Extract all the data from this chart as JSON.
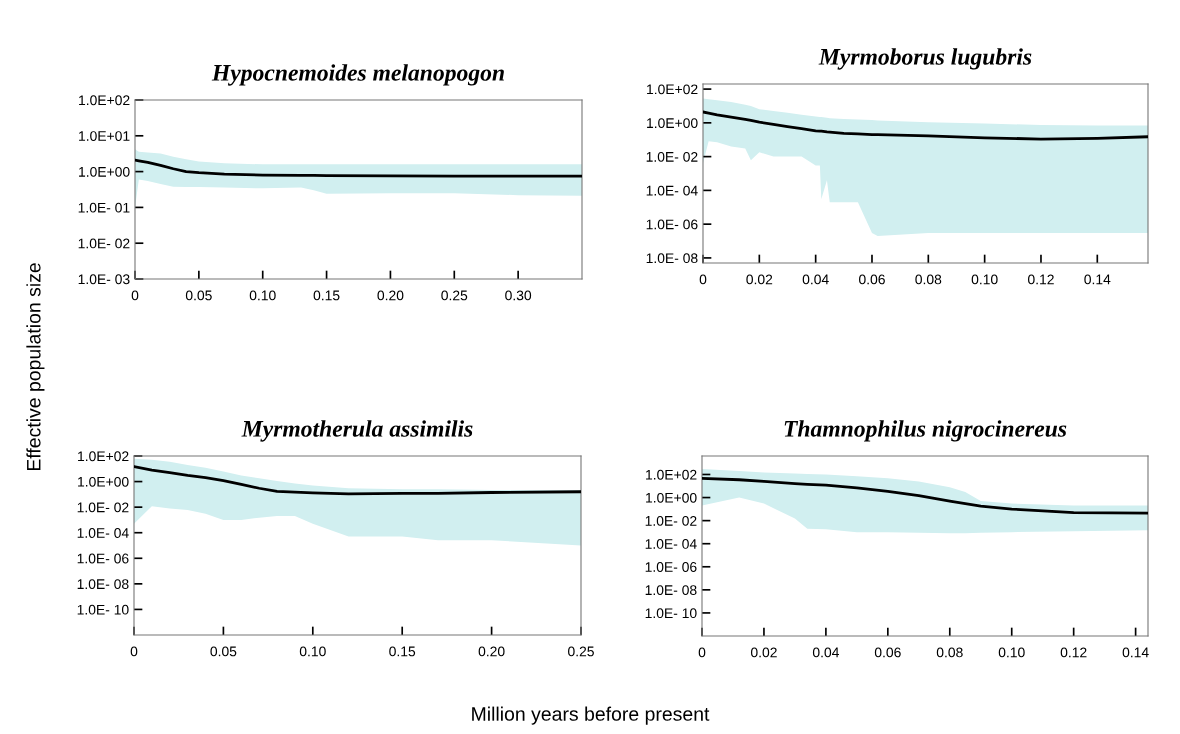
{
  "chart_data": [
    {
      "type": "line",
      "title": "Hypocnemoides melanopogon",
      "xlabel": "Million years before present",
      "ylabel": "Effective population size",
      "log": "y",
      "grid": false,
      "xlim": [
        0,
        0.35
      ],
      "ylim": [
        0.001,
        100
      ],
      "xticks": [
        {
          "value": 0,
          "label": "0"
        },
        {
          "value": 0.05,
          "label": "0.05"
        },
        {
          "value": 0.1,
          "label": "0.10"
        },
        {
          "value": 0.15,
          "label": "0.15"
        },
        {
          "value": 0.2,
          "label": "0.20"
        },
        {
          "value": 0.25,
          "label": "0.25"
        },
        {
          "value": 0.3,
          "label": "0.30"
        }
      ],
      "yticks": [
        {
          "value": 100,
          "label": "1.0E+02"
        },
        {
          "value": 10,
          "label": "1.0E+01"
        },
        {
          "value": 1,
          "label": "1.0E+00"
        },
        {
          "value": 0.1,
          "label": "1.0E- 01"
        },
        {
          "value": 0.01,
          "label": "1.0E- 02"
        },
        {
          "value": 0.001,
          "label": "1.0E- 03"
        }
      ],
      "series": [
        {
          "color": "#000000",
          "x": [
            0,
            0.003,
            0.01,
            0.02,
            0.03,
            0.04,
            0.05,
            0.07,
            0.1,
            0.13,
            0.14,
            0.15,
            0.2,
            0.25,
            0.3,
            0.35
          ],
          "values": [
            2.1,
            2.0,
            1.8,
            1.5,
            1.2,
            1.0,
            0.93,
            0.85,
            0.8,
            0.78,
            0.78,
            0.77,
            0.76,
            0.75,
            0.75,
            0.75
          ],
          "upper": [
            4.2,
            3.6,
            3.4,
            3.2,
            2.6,
            2.2,
            1.9,
            1.7,
            1.6,
            1.6,
            1.6,
            1.6,
            1.6,
            1.6,
            1.6,
            1.6
          ],
          "lower": [
            0.1,
            0.6,
            0.55,
            0.45,
            0.38,
            0.37,
            0.37,
            0.36,
            0.34,
            0.36,
            0.3,
            0.24,
            0.25,
            0.25,
            0.22,
            0.21
          ]
        }
      ]
    },
    {
      "type": "line",
      "title": "Myrmoborus lugubris",
      "log": "y",
      "grid": false,
      "xlim": [
        0,
        0.158
      ],
      "ylim": [
        5e-09,
        200
      ],
      "xticks": [
        {
          "value": 0,
          "label": "0"
        },
        {
          "value": 0.02,
          "label": "0.02"
        },
        {
          "value": 0.04,
          "label": "0.04"
        },
        {
          "value": 0.06,
          "label": "0.06"
        },
        {
          "value": 0.08,
          "label": "0.08"
        },
        {
          "value": 0.1,
          "label": "0.10"
        },
        {
          "value": 0.12,
          "label": "0.12"
        },
        {
          "value": 0.14,
          "label": "0.14"
        }
      ],
      "yticks": [
        {
          "value": 100,
          "label": "1.0E+02"
        },
        {
          "value": 1,
          "label": "1.0E+00"
        },
        {
          "value": 0.01,
          "label": "1.0E- 02"
        },
        {
          "value": 0.0001,
          "label": "1.0E- 04"
        },
        {
          "value": 1e-06,
          "label": "1.0E- 06"
        },
        {
          "value": 1e-08,
          "label": "1.0E- 08"
        }
      ],
      "series": [
        {
          "color": "#000000",
          "x": [
            0,
            0.002,
            0.005,
            0.01,
            0.015,
            0.017,
            0.02,
            0.025,
            0.03,
            0.035,
            0.04,
            0.0415,
            0.042,
            0.044,
            0.045,
            0.05,
            0.055,
            0.06,
            0.062,
            0.08,
            0.1,
            0.12,
            0.14,
            0.158
          ],
          "values": [
            4.4,
            3.8,
            3.0,
            2.2,
            1.6,
            1.4,
            1.1,
            0.8,
            0.6,
            0.45,
            0.34,
            0.32,
            0.32,
            0.29,
            0.28,
            0.24,
            0.22,
            0.2,
            0.2,
            0.17,
            0.13,
            0.11,
            0.12,
            0.15
          ],
          "upper": [
            28,
            25,
            22,
            17,
            12,
            10,
            6.4,
            5,
            4,
            3,
            2.4,
            2.2,
            2.2,
            2,
            1.9,
            1.7,
            1.6,
            1.5,
            1.4,
            1.1,
            0.9,
            0.75,
            0.7,
            0.7
          ],
          "lower": [
            0.004,
            0.08,
            0.07,
            0.04,
            0.03,
            0.006,
            0.018,
            0.01,
            0.01,
            0.01,
            0.003,
            0.003,
            3e-05,
            0.0004,
            2e-05,
            2e-05,
            2e-05,
            3e-07,
            2e-07,
            3e-07,
            3e-07,
            3e-07,
            3e-07,
            3e-07
          ]
        }
      ]
    },
    {
      "type": "line",
      "title": "Myrmotherula assimilis",
      "log": "y",
      "grid": false,
      "xlim": [
        0,
        0.25
      ],
      "ylim": [
        1e-12,
        100
      ],
      "xticks": [
        {
          "value": 0,
          "label": "0"
        },
        {
          "value": 0.05,
          "label": "0.05"
        },
        {
          "value": 0.1,
          "label": "0.10"
        },
        {
          "value": 0.15,
          "label": "0.15"
        },
        {
          "value": 0.2,
          "label": "0.20"
        },
        {
          "value": 0.25,
          "label": "0.25"
        }
      ],
      "yticks": [
        {
          "value": 100,
          "label": "1.0E+02"
        },
        {
          "value": 1,
          "label": "1.0E+00"
        },
        {
          "value": 0.01,
          "label": "1.0E- 02"
        },
        {
          "value": 0.0001,
          "label": "1.0E- 04"
        },
        {
          "value": 1e-06,
          "label": "1.0E- 06"
        },
        {
          "value": 1e-08,
          "label": "1.0E- 08"
        },
        {
          "value": 1e-10,
          "label": "1.0E- 10"
        }
      ],
      "series": [
        {
          "color": "#000000",
          "x": [
            0,
            0.01,
            0.02,
            0.03,
            0.04,
            0.05,
            0.06,
            0.07,
            0.08,
            0.09,
            0.1,
            0.12,
            0.15,
            0.17,
            0.2,
            0.25
          ],
          "values": [
            15,
            8,
            5,
            3,
            2,
            1.2,
            0.6,
            0.3,
            0.17,
            0.15,
            0.13,
            0.11,
            0.12,
            0.12,
            0.14,
            0.16
          ],
          "upper": [
            60,
            50,
            35,
            20,
            12,
            6,
            3,
            1.8,
            1.1,
            0.7,
            0.5,
            0.3,
            0.25,
            0.25,
            0.22,
            0.22
          ],
          "lower": [
            0.0005,
            0.012,
            0.008,
            0.006,
            0.003,
            0.001,
            0.001,
            0.0015,
            0.002,
            0.002,
            0.0005,
            5e-05,
            5e-05,
            2.6e-05,
            2.6e-05,
            1e-05
          ]
        }
      ]
    },
    {
      "type": "line",
      "title": "Thamnophilus nigrocinereus",
      "log": "y",
      "grid": false,
      "xlim": [
        0,
        0.144
      ],
      "ylim": [
        1e-12,
        4000
      ],
      "xticks": [
        {
          "value": 0,
          "label": "0"
        },
        {
          "value": 0.02,
          "label": "0.02"
        },
        {
          "value": 0.04,
          "label": "0.04"
        },
        {
          "value": 0.06,
          "label": "0.06"
        },
        {
          "value": 0.08,
          "label": "0.08"
        },
        {
          "value": 0.1,
          "label": "0.10"
        },
        {
          "value": 0.12,
          "label": "0.12"
        },
        {
          "value": 0.14,
          "label": "0.14"
        }
      ],
      "yticks": [
        {
          "value": 100,
          "label": "1.0E+02"
        },
        {
          "value": 1,
          "label": "1.0E+00"
        },
        {
          "value": 0.01,
          "label": "1.0E- 02"
        },
        {
          "value": 0.0001,
          "label": "1.0E- 04"
        },
        {
          "value": 1e-06,
          "label": "1.0E- 06"
        },
        {
          "value": 1e-08,
          "label": "1.0E- 08"
        },
        {
          "value": 1e-10,
          "label": "1.0E- 10"
        }
      ],
      "series": [
        {
          "color": "#000000",
          "x": [
            0,
            0.012,
            0.02,
            0.03,
            0.034,
            0.04,
            0.05,
            0.06,
            0.07,
            0.08,
            0.085,
            0.09,
            0.1,
            0.12,
            0.144
          ],
          "values": [
            46,
            35,
            25,
            16,
            14,
            12,
            7,
            3.5,
            1.5,
            0.5,
            0.3,
            0.18,
            0.1,
            0.05,
            0.045
          ],
          "upper": [
            300,
            200,
            150,
            120,
            110,
            100,
            70,
            46,
            25,
            8,
            3,
            0.5,
            0.3,
            0.2,
            0.2
          ],
          "lower": [
            0.2,
            1,
            0.3,
            0.015,
            0.002,
            0.0018,
            0.001,
            0.001,
            0.0009,
            0.0008,
            0.0008,
            0.0009,
            0.001,
            0.0012,
            0.0015
          ]
        }
      ]
    }
  ]
}
